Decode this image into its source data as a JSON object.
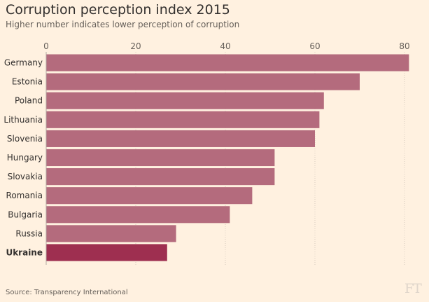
{
  "header": {
    "title": "Corruption perception index 2015",
    "subtitle": "Higher number indicates lower perception of corruption"
  },
  "footer": {
    "source": "Source: Transparency International",
    "logo": "FT"
  },
  "colors": {
    "bar": "#b46b7d",
    "highlight": "#9e2f50",
    "grid": "#d9cdc1",
    "axis": "#b3aaa2",
    "text": "#33302e",
    "tick": "#66605a"
  },
  "chart_data": {
    "type": "bar",
    "orientation": "horizontal",
    "title": "Corruption perception index 2015",
    "subtitle": "Higher number indicates lower perception of corruption",
    "categories": [
      "Germany",
      "Estonia",
      "Poland",
      "Lithuania",
      "Slovenia",
      "Hungary",
      "Slovakia",
      "Romania",
      "Bulgaria",
      "Russia",
      "Ukraine"
    ],
    "values": [
      81,
      70,
      62,
      61,
      60,
      51,
      51,
      46,
      41,
      29,
      27
    ],
    "highlight": "Ukraine",
    "xlim": [
      0,
      80
    ],
    "xticks": [
      0,
      20,
      40,
      60,
      80
    ],
    "tick_position": "top",
    "grid": true,
    "legend": "none"
  }
}
